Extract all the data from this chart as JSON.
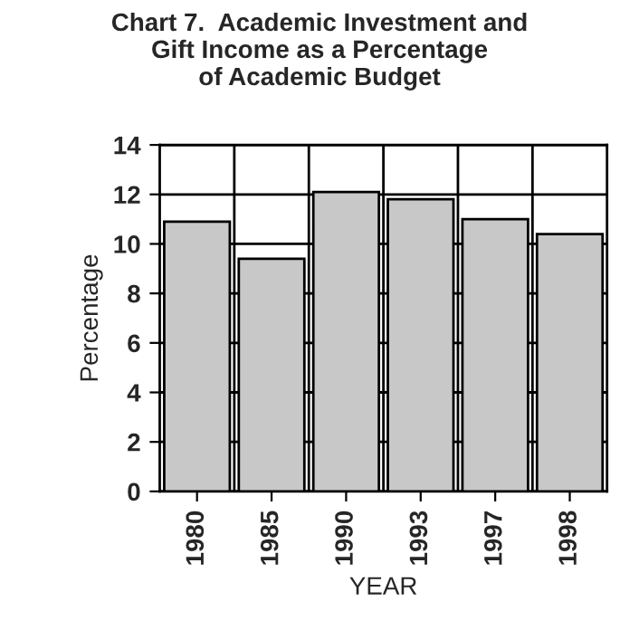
{
  "chart_data": {
    "type": "bar",
    "title": "Chart 7.  Academic Investment and\nGift Income as a Percentage\nof Academic Budget",
    "xlabel": "YEAR",
    "ylabel": "Percentage",
    "categories": [
      "1980",
      "1985",
      "1990",
      "1993",
      "1997",
      "1998"
    ],
    "values": [
      10.9,
      9.4,
      12.1,
      11.8,
      11.0,
      10.4
    ],
    "color": "#c8c8c8",
    "ylim": [
      0,
      14
    ],
    "yticks": [
      0,
      2,
      4,
      6,
      8,
      10,
      12,
      14
    ],
    "grid": true
  }
}
